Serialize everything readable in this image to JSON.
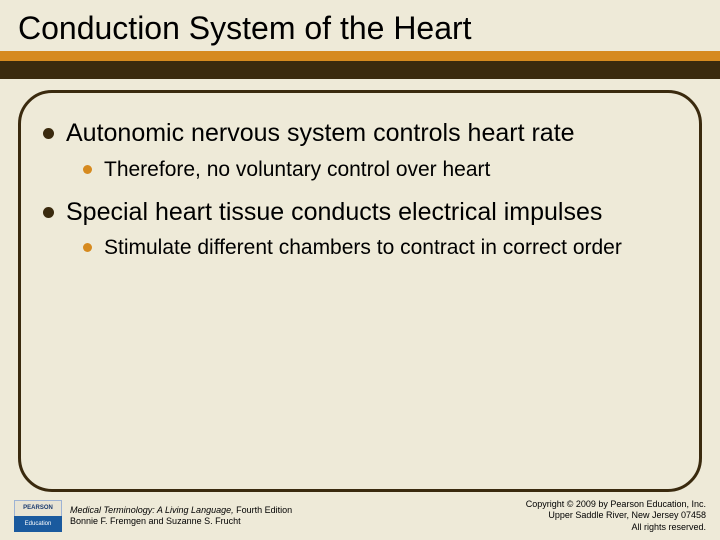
{
  "colors": {
    "background": "#eeead8",
    "band_orange": "#d68a1f",
    "band_dark": "#3a2a0e",
    "content_border": "#3a2a0e",
    "bullet_l1": "#3a2a0e",
    "bullet_l2": "#d68a1f"
  },
  "title": "Conduction System of the Heart",
  "bullets": [
    {
      "level": 1,
      "text": "Autonomic nervous system controls heart rate"
    },
    {
      "level": 2,
      "text": "Therefore, no voluntary control over heart"
    },
    {
      "level": 1,
      "text": "Special heart tissue conducts electrical impulses"
    },
    {
      "level": 2,
      "text": "Stimulate different chambers to contract in correct order"
    }
  ],
  "logo": {
    "top": "PEARSON",
    "bottom": "Education"
  },
  "book": {
    "title": "Medical Terminology: A Living Language,",
    "edition": " Fourth Edition",
    "authors": "Bonnie F. Fremgen and Suzanne S. Frucht"
  },
  "copyright": {
    "line1": "Copyright © 2009 by Pearson Education, Inc.",
    "line2": "Upper Saddle River, New Jersey 07458",
    "line3": "All rights reserved."
  }
}
